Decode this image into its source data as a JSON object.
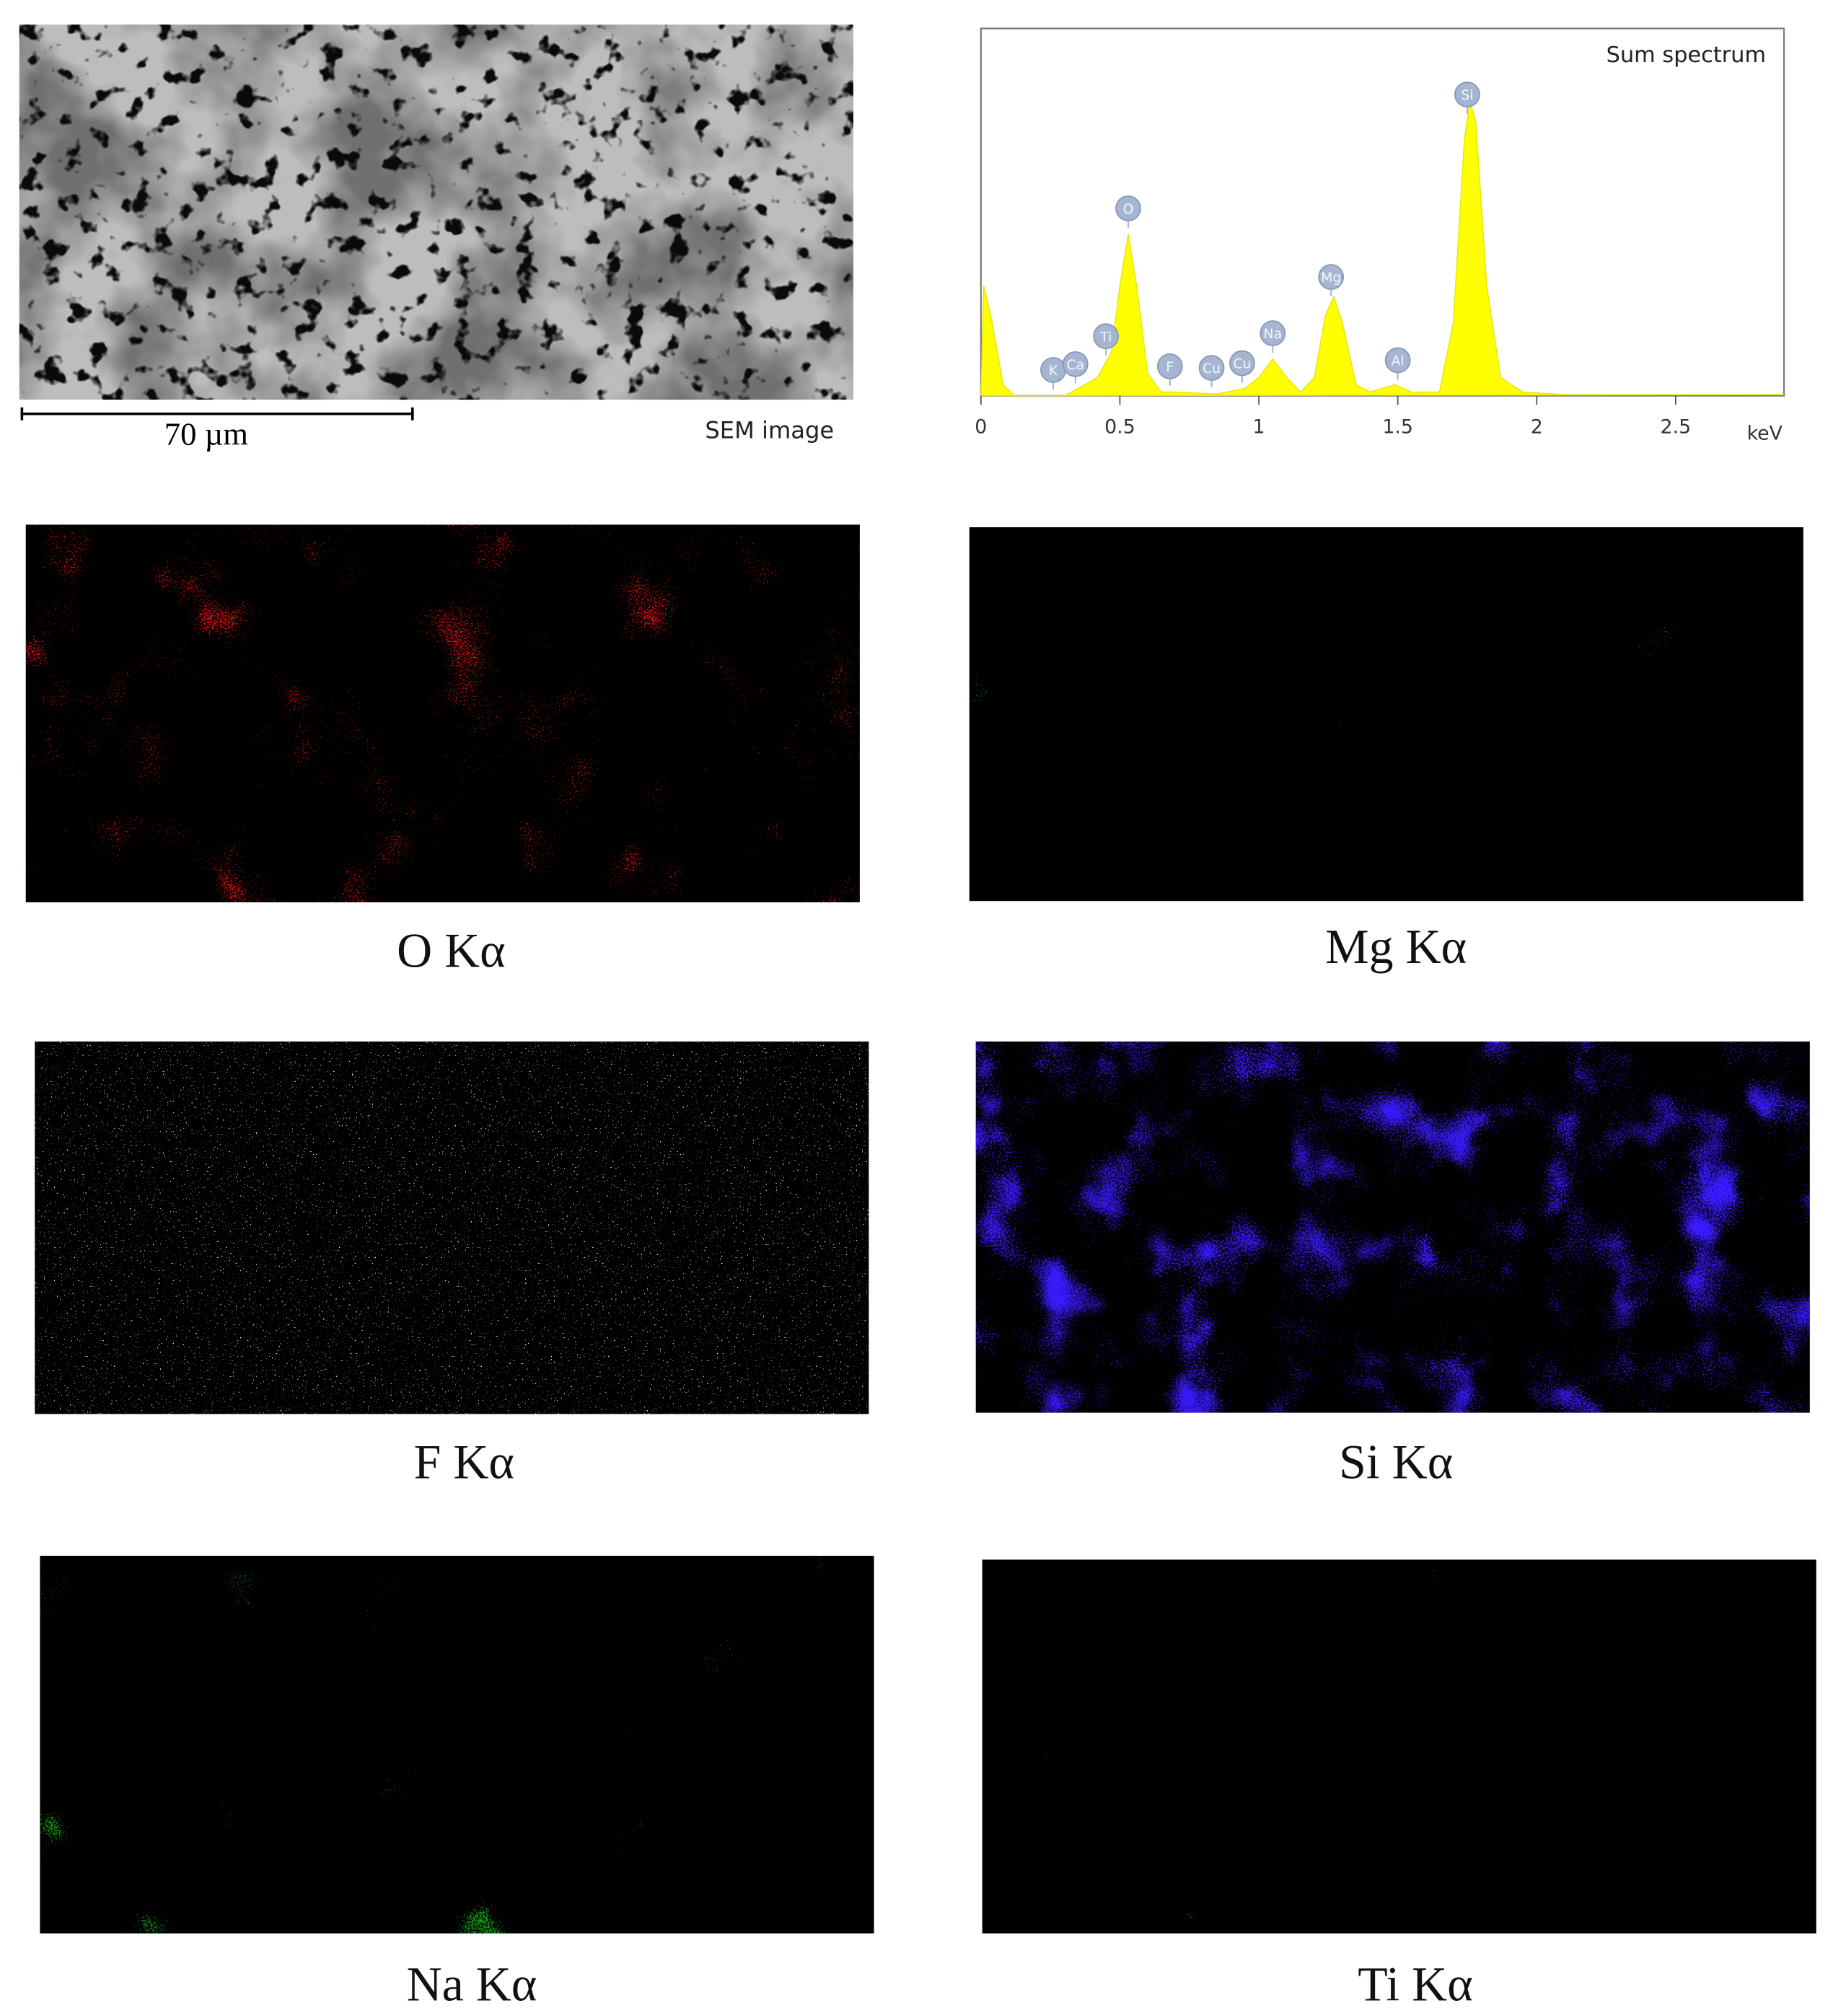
{
  "sem": {
    "scale_bar": "70 µm",
    "caption": "SEM image"
  },
  "chart_data": {
    "type": "area",
    "title": "Sum spectrum",
    "x_unit": "keV",
    "x": [
      0,
      0.01,
      0.04,
      0.08,
      0.12,
      0.3,
      0.35,
      0.42,
      0.47,
      0.5,
      0.53,
      0.56,
      0.6,
      0.65,
      0.7,
      0.85,
      0.95,
      1.0,
      1.05,
      1.1,
      1.15,
      1.2,
      1.24,
      1.27,
      1.3,
      1.35,
      1.4,
      1.49,
      1.55,
      1.65,
      1.7,
      1.74,
      1.76,
      1.78,
      1.82,
      1.87,
      1.95,
      2.1,
      2.89
    ],
    "values": [
      0,
      30,
      20,
      3,
      0,
      0,
      2,
      5,
      12,
      30,
      44,
      30,
      6,
      1,
      1,
      0.5,
      2,
      5,
      10,
      5,
      1,
      5,
      22,
      27,
      20,
      3,
      1,
      3,
      1,
      1,
      20,
      70,
      80,
      75,
      30,
      5,
      1,
      0.3,
      0.3
    ],
    "color": "#ffff00",
    "xlim": [
      0,
      2.89
    ],
    "ylim": [
      0,
      100
    ],
    "xticks": [
      0,
      0.5,
      1,
      1.5,
      2,
      2.5
    ],
    "peaks": [
      {
        "label": "K",
        "x": 0.26
      },
      {
        "label": "Ca",
        "x": 0.34
      },
      {
        "label": "Ti",
        "x": 0.45
      },
      {
        "label": "O",
        "x": 0.53
      },
      {
        "label": "F",
        "x": 0.68
      },
      {
        "label": "Cu",
        "x": 0.83
      },
      {
        "label": "Cu",
        "x": 0.94
      },
      {
        "label": "Na",
        "x": 1.05
      },
      {
        "label": "Mg",
        "x": 1.26
      },
      {
        "label": "Al",
        "x": 1.5
      },
      {
        "label": "Si",
        "x": 1.75
      }
    ]
  },
  "maps": [
    {
      "label": "O Kα",
      "color": "#ff1010"
    },
    {
      "label": "Mg Kα",
      "color": "#20e0a0"
    },
    {
      "label": "F Kα",
      "color": "#ffffff"
    },
    {
      "label": "Si Kα",
      "color": "#3a1aff"
    },
    {
      "label": "Na Kα",
      "color": "#20d020"
    },
    {
      "label": "Ti Kα",
      "color": "#ff30e0"
    }
  ]
}
